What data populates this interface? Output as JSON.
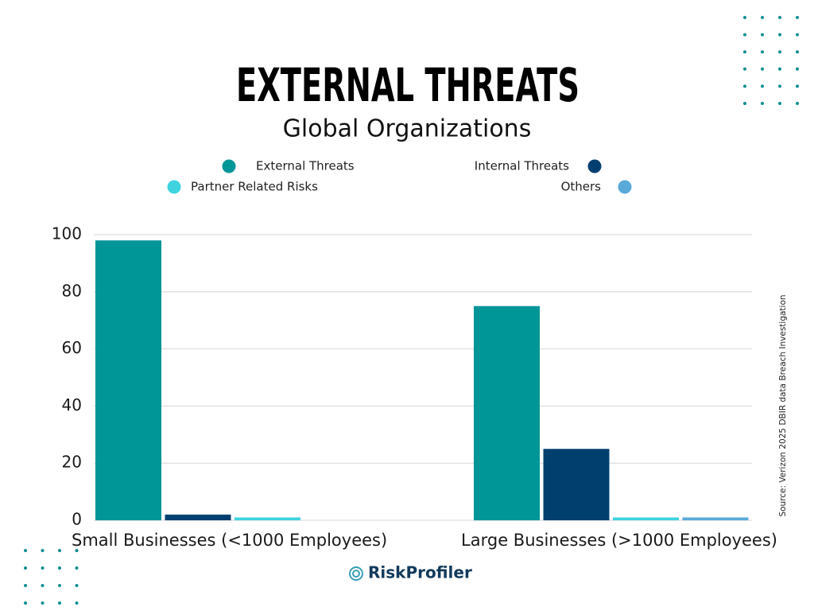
{
  "chart_data": {
    "type": "bar",
    "title": "EXTERNAL THREATS",
    "subtitle": "Global Organizations",
    "categories": [
      "Small Businesses (<1000 Employees)",
      "Large Businesses (>1000 Employees)"
    ],
    "series": [
      {
        "name": "External Threats",
        "color": "#009597",
        "values": [
          98,
          75
        ]
      },
      {
        "name": "Internal Threats",
        "color": "#003f6e",
        "values": [
          2,
          25
        ]
      },
      {
        "name": "Partner Related Risks",
        "color": "#3fd3df",
        "values": [
          1,
          1
        ]
      },
      {
        "name": "Others",
        "color": "#5aaad9",
        "values": [
          0,
          1
        ]
      }
    ],
    "ylim": [
      0,
      100
    ],
    "yticks": [
      0,
      20,
      40,
      60,
      80,
      100
    ],
    "grid": true,
    "source": "Source: Verizon 2025 DBIR data Breach Investigation",
    "brand": "RiskProfiler"
  }
}
